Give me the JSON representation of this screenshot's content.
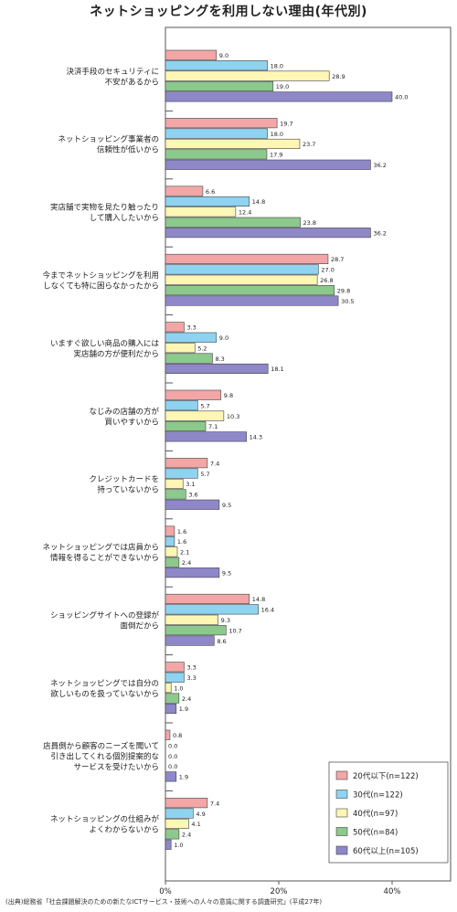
{
  "chart_data": {
    "type": "bar",
    "orientation": "horizontal",
    "title": "ネットショッピングを利用しない理由(年代別)",
    "categories": [
      [
        "決済手段のセキュリティに",
        "不安があるから"
      ],
      [
        "ネットショッピング事業者の",
        "信頼性が低いから"
      ],
      [
        "実店舗で実物を見たり触ったり",
        "して購入したいから"
      ],
      [
        "今までネットショッピングを利用",
        "しなくても特に困らなかったから"
      ],
      [
        "いますぐ欲しい商品の購入には",
        "実店舗の方が便利だから"
      ],
      [
        "なじみの店舗の方が",
        "買いやすいから"
      ],
      [
        "クレジットカードを",
        "持っていないから"
      ],
      [
        "ネットショッピングでは店員から",
        "情報を得ることができないから"
      ],
      [
        "ショッピングサイトへの登録が",
        "面倒だから"
      ],
      [
        "ネットショッピングでは自分の",
        "欲しいものを扱っていないから"
      ],
      [
        "店員側から顧客のニーズを聞いて",
        "引き出してくれる個別提案的な",
        "サービスを受けたいから"
      ],
      [
        "ネットショッピングの仕組みが",
        "よくわからないから"
      ]
    ],
    "series": [
      {
        "name": "20代以下(n=122)",
        "color": "#f2a6a6",
        "values": [
          9.0,
          19.7,
          6.6,
          28.7,
          3.3,
          9.8,
          7.4,
          1.6,
          14.8,
          3.3,
          0.8,
          7.4
        ]
      },
      {
        "name": "30代(n=122)",
        "color": "#8fd3f0",
        "values": [
          18.0,
          18.0,
          14.8,
          27.0,
          9.0,
          5.7,
          5.7,
          1.6,
          16.4,
          3.3,
          0.0,
          4.9
        ]
      },
      {
        "name": "40代(n=97)",
        "color": "#fdf6b4",
        "values": [
          28.9,
          23.7,
          12.4,
          26.8,
          5.2,
          10.3,
          3.1,
          2.1,
          9.3,
          1.0,
          0.0,
          4.1
        ]
      },
      {
        "name": "50代(n=84)",
        "color": "#8cc98c",
        "values": [
          19.0,
          17.9,
          23.8,
          29.8,
          8.3,
          7.1,
          3.6,
          2.4,
          10.7,
          2.4,
          0.0,
          2.4
        ]
      },
      {
        "name": "60代以上(n=105)",
        "color": "#8e87c8",
        "values": [
          40.0,
          36.2,
          36.2,
          30.5,
          18.1,
          14.3,
          9.5,
          9.5,
          8.6,
          1.9,
          1.9,
          1.0
        ]
      }
    ],
    "value_labels": [
      [
        "9.0",
        "19.7",
        "6.6",
        "28.7",
        "3.3",
        "9.8",
        "7.4",
        "1.6",
        "14.8",
        "3.3",
        "0.8",
        "7.4"
      ],
      [
        "18.0",
        "18.0",
        "14.8",
        "27.0",
        "9.0",
        "5.7",
        "5.7",
        "1.6",
        "16.4",
        "3.3",
        "0.0",
        "4.9"
      ],
      [
        "28.9",
        "23.7",
        "12.4",
        "26.8",
        "5.2",
        "10.3",
        "3.1",
        "2.1",
        "9.3",
        "1.0",
        "0.0",
        "4.1"
      ],
      [
        "19.0",
        "17.9",
        "23.8",
        "29.8",
        "8.3",
        "7.1",
        "3.6",
        "2.4",
        "10.7",
        "2.4",
        "0.0",
        "2.4"
      ],
      [
        "40.0",
        "36.2",
        "36.2",
        "30.5",
        "18.1",
        "14.3",
        "9.5",
        "9.5",
        "8.6",
        "1.9",
        "1.9",
        "1.0"
      ]
    ],
    "xlim": [
      0,
      50
    ],
    "xticks": [
      0,
      20,
      40
    ],
    "xtick_labels": [
      "0%",
      "20%",
      "40%"
    ],
    "grid": false,
    "legend_position": "bottom-right"
  },
  "source": "(出典)総務省「社会課題解決のための新たなICTサービス・技術への人々の意識に関する調査研究」(平成27年)"
}
